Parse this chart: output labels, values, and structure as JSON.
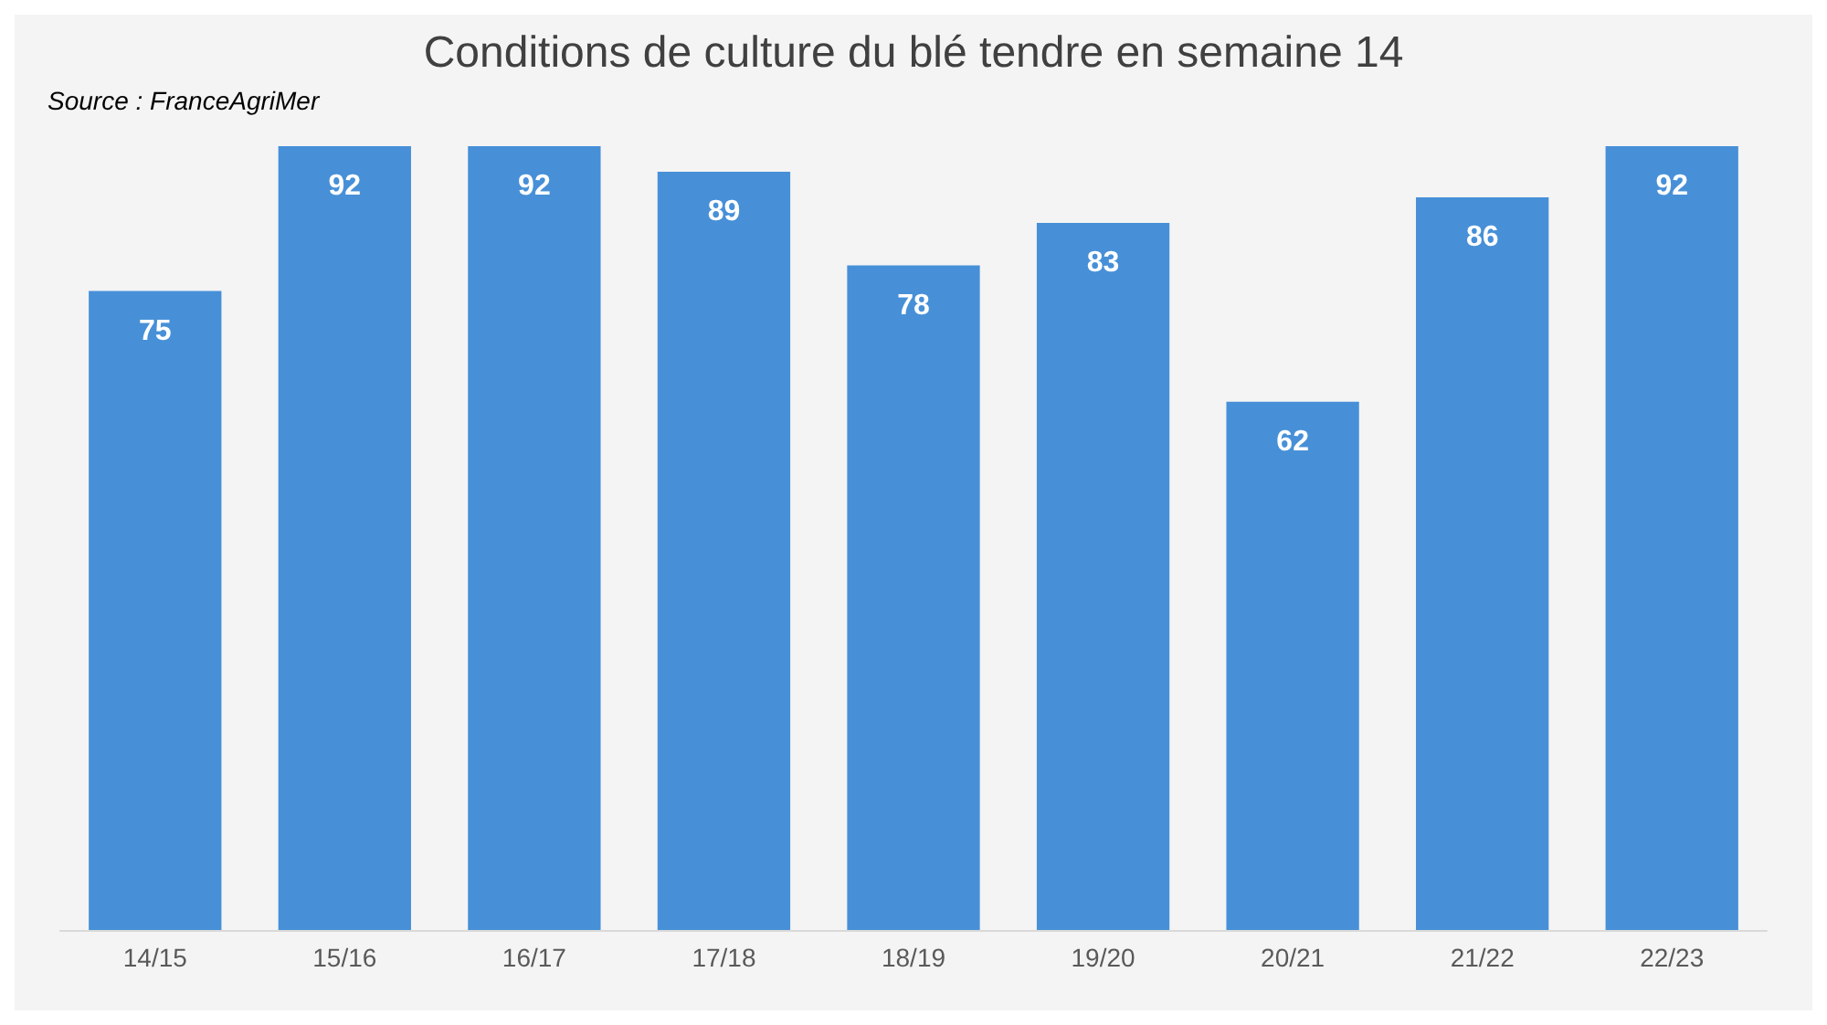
{
  "chart_data": {
    "type": "bar",
    "title": "Conditions de culture du blé tendre en semaine 14",
    "annotations": [
      "Source : FranceAgriMer"
    ],
    "categories": [
      "14/15",
      "15/16",
      "16/17",
      "17/18",
      "18/19",
      "19/20",
      "20/21",
      "21/22",
      "22/23"
    ],
    "values": [
      75,
      92,
      92,
      89,
      78,
      83,
      62,
      86,
      92
    ],
    "color": "#4790d8",
    "data_labels": true
  }
}
